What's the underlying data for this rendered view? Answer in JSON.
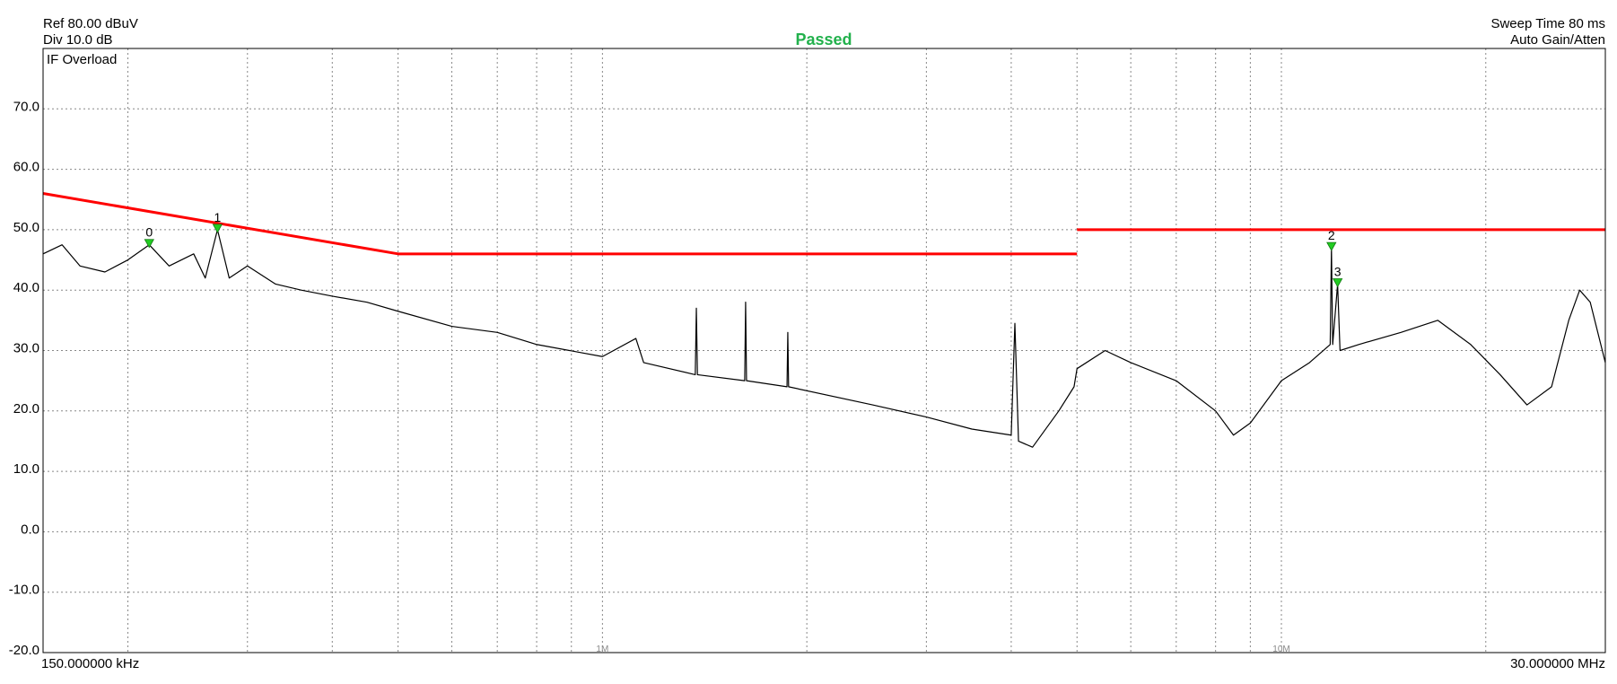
{
  "header": {
    "ref": "Ref 80.00 dBuV",
    "div": "Div 10.0 dB",
    "status": "Passed",
    "sweep": "Sweep Time 80 ms",
    "gain": "Auto Gain/Atten",
    "overload": "IF Overload"
  },
  "chart_data": {
    "type": "line",
    "log_x": true,
    "grid": true,
    "xlim": [
      150000,
      30000000
    ],
    "xticks": [
      {
        "value": 150000,
        "label": "150.000000 kHz"
      },
      {
        "value": 1000000,
        "label": "1M"
      },
      {
        "value": 10000000,
        "label": "10M"
      },
      {
        "value": 30000000,
        "label": "30.000000 MHz"
      }
    ],
    "xgrid": [
      200000,
      300000,
      400000,
      500000,
      600000,
      700000,
      800000,
      900000,
      2000000,
      3000000,
      4000000,
      5000000,
      6000000,
      7000000,
      8000000,
      9000000,
      20000000
    ],
    "ylim": [
      -20,
      80
    ],
    "yticks": [
      {
        "value": -20,
        "label": "-20.0"
      },
      {
        "value": -10,
        "label": "-10.0"
      },
      {
        "value": 0,
        "label": "0.0"
      },
      {
        "value": 10,
        "label": "10.0"
      },
      {
        "value": 20,
        "label": "20.0"
      },
      {
        "value": 30,
        "label": "30.0"
      },
      {
        "value": 40,
        "label": "40.0"
      },
      {
        "value": 50,
        "label": "50.0"
      },
      {
        "value": 60,
        "label": "60.0"
      },
      {
        "value": 70,
        "label": "70.0"
      }
    ],
    "series": [
      {
        "color": "#000000",
        "x": [
          150000,
          160000,
          170000,
          185000,
          200000,
          215000,
          230000,
          250000,
          260000,
          271000,
          282000,
          300000,
          330000,
          360000,
          400000,
          450000,
          500000,
          600000,
          700000,
          800000,
          1000000,
          1120000,
          1150000,
          1370000,
          1375000,
          1380000,
          1620000,
          1625000,
          1630000,
          1870000,
          1875000,
          1880000,
          2500000,
          3000000,
          3500000,
          4000000,
          4050000,
          4100000,
          4300000,
          4700000,
          4950000,
          5000000,
          5500000,
          6000000,
          7000000,
          8000000,
          8500000,
          9000000,
          10000000,
          11000000,
          11800000,
          11850000,
          11900000,
          12100000,
          12200000,
          13000000,
          15000000,
          17000000,
          19000000,
          21000000,
          23000000,
          25000000,
          26500000,
          27500000,
          28500000,
          30000000
        ],
        "values": [
          46,
          47.5,
          44,
          43,
          45,
          47.5,
          44,
          46,
          42,
          50,
          42,
          44,
          41,
          40,
          39,
          38,
          36.5,
          34,
          33,
          31,
          29,
          32,
          28,
          26,
          37,
          26,
          25,
          38,
          25,
          24,
          33,
          24,
          21,
          19,
          17,
          16,
          34.5,
          15,
          14,
          20,
          24,
          27,
          30,
          28,
          25,
          20,
          16,
          18,
          25,
          28,
          31,
          47,
          31,
          41,
          30,
          31,
          33,
          35,
          31,
          26,
          21,
          24,
          35,
          40,
          38,
          28
        ]
      },
      {
        "color": "#ff0000",
        "x": [
          150000,
          500000,
          5000000,
          5000000,
          5000000,
          30000000
        ],
        "values": [
          56,
          46,
          46,
          null,
          50,
          50
        ]
      }
    ],
    "markers": [
      {
        "label": "0",
        "x": 215000,
        "value": 47.5
      },
      {
        "label": "1",
        "x": 271000,
        "value": 50
      },
      {
        "label": "2",
        "x": 11850000,
        "value": 47
      },
      {
        "label": "3",
        "x": 12100000,
        "value": 41
      }
    ]
  }
}
